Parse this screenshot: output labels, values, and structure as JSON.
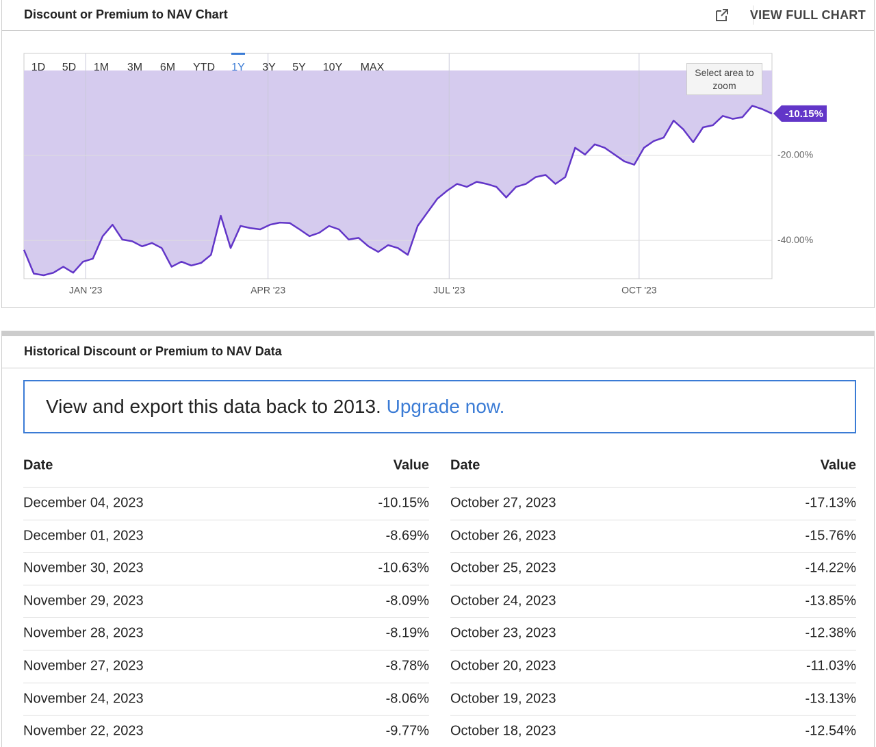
{
  "header": {
    "title": "Discount or Premium to NAV Chart",
    "link": "VIEW FULL CHART"
  },
  "range_buttons": {
    "options": [
      "1D",
      "5D",
      "1M",
      "3M",
      "6M",
      "YTD",
      "1Y",
      "3Y",
      "5Y",
      "10Y",
      "MAX"
    ],
    "selected": 6
  },
  "zoom_hint": "Select area to zoom",
  "chart_data": {
    "type": "line",
    "color": "#6236c8",
    "fill_color": "#d5cbee",
    "values": [
      -42.2,
      -47.8,
      -48.2,
      -47.6,
      -46.2,
      -47.6,
      -45.0,
      -44.3,
      -39.0,
      -36.3,
      -39.8,
      -40.2,
      -41.4,
      -40.6,
      -41.8,
      -46.2,
      -45.0,
      -45.9,
      -45.3,
      -43.4,
      -34.2,
      -41.8,
      -36.6,
      -37.1,
      -37.4,
      -36.3,
      -35.8,
      -35.9,
      -37.4,
      -39.0,
      -38.2,
      -36.6,
      -37.4,
      -39.8,
      -39.4,
      -41.4,
      -42.7,
      -41.1,
      -41.8,
      -43.4,
      -36.6,
      -33.4,
      -30.2,
      -28.3,
      -26.7,
      -27.4,
      -26.2,
      -26.7,
      -27.4,
      -29.9,
      -27.4,
      -26.7,
      -25.1,
      -24.6,
      -26.7,
      -25.1,
      -18.2,
      -19.8,
      -17.4,
      -18.2,
      -19.8,
      -21.4,
      -22.2,
      -18.2,
      -16.6,
      -15.8,
      -11.8,
      -13.9,
      -16.9,
      -13.4,
      -12.9,
      -10.7,
      -11.4,
      -11.0,
      -8.3,
      -9.1,
      -10.15
    ],
    "value_labels": [
      null,
      null,
      null,
      null,
      null,
      null,
      null,
      null,
      null,
      null,
      null,
      null,
      null,
      null,
      null,
      null,
      null,
      null,
      null,
      null,
      null,
      null,
      null,
      null,
      null,
      null,
      null,
      null,
      null,
      null,
      null,
      null,
      null,
      null,
      null,
      null,
      null,
      null,
      null,
      null,
      null,
      null,
      null,
      null,
      null,
      null,
      null,
      null,
      null,
      null,
      null,
      null,
      null,
      null,
      null,
      null,
      null,
      null,
      null,
      null,
      null,
      null,
      null,
      null,
      null,
      null,
      null,
      null,
      null,
      null,
      null,
      null,
      null,
      null,
      null,
      null,
      "-10.15%"
    ],
    "xlim": [
      0,
      76
    ],
    "xticks": [
      {
        "value": 6.27,
        "label": "JAN '23"
      },
      {
        "value": 24.8,
        "label": "APR '23"
      },
      {
        "value": 43.2,
        "label": "JUL '23"
      },
      {
        "value": 62.5,
        "label": "OCT '23"
      }
    ],
    "ylim": [
      -49,
      4
    ],
    "yticks": [
      {
        "value": -20,
        "label": "-20.00%"
      },
      {
        "value": -40,
        "label": "-40.00%"
      }
    ],
    "grid": true
  },
  "data_section": {
    "title": "Historical Discount or Premium to NAV Data",
    "banner": {
      "text": "View and export this data back to 2013.",
      "link": "Upgrade now."
    },
    "table": {
      "columns": [
        "Date",
        "Value",
        "Date",
        "Value"
      ],
      "rows": [
        [
          "December 04, 2023",
          "-10.15%",
          "October 27, 2023",
          "-17.13%"
        ],
        [
          "December 01, 2023",
          "-8.69%",
          "October 26, 2023",
          "-15.76%"
        ],
        [
          "November 30, 2023",
          "-10.63%",
          "October 25, 2023",
          "-14.22%"
        ],
        [
          "November 29, 2023",
          "-8.09%",
          "October 24, 2023",
          "-13.85%"
        ],
        [
          "November 28, 2023",
          "-8.19%",
          "October 23, 2023",
          "-12.38%"
        ],
        [
          "November 27, 2023",
          "-8.78%",
          "October 20, 2023",
          "-11.03%"
        ],
        [
          "November 24, 2023",
          "-8.06%",
          "October 19, 2023",
          "-13.13%"
        ],
        [
          "November 22, 2023",
          "-9.77%",
          "October 18, 2023",
          "-12.54%"
        ]
      ]
    }
  }
}
